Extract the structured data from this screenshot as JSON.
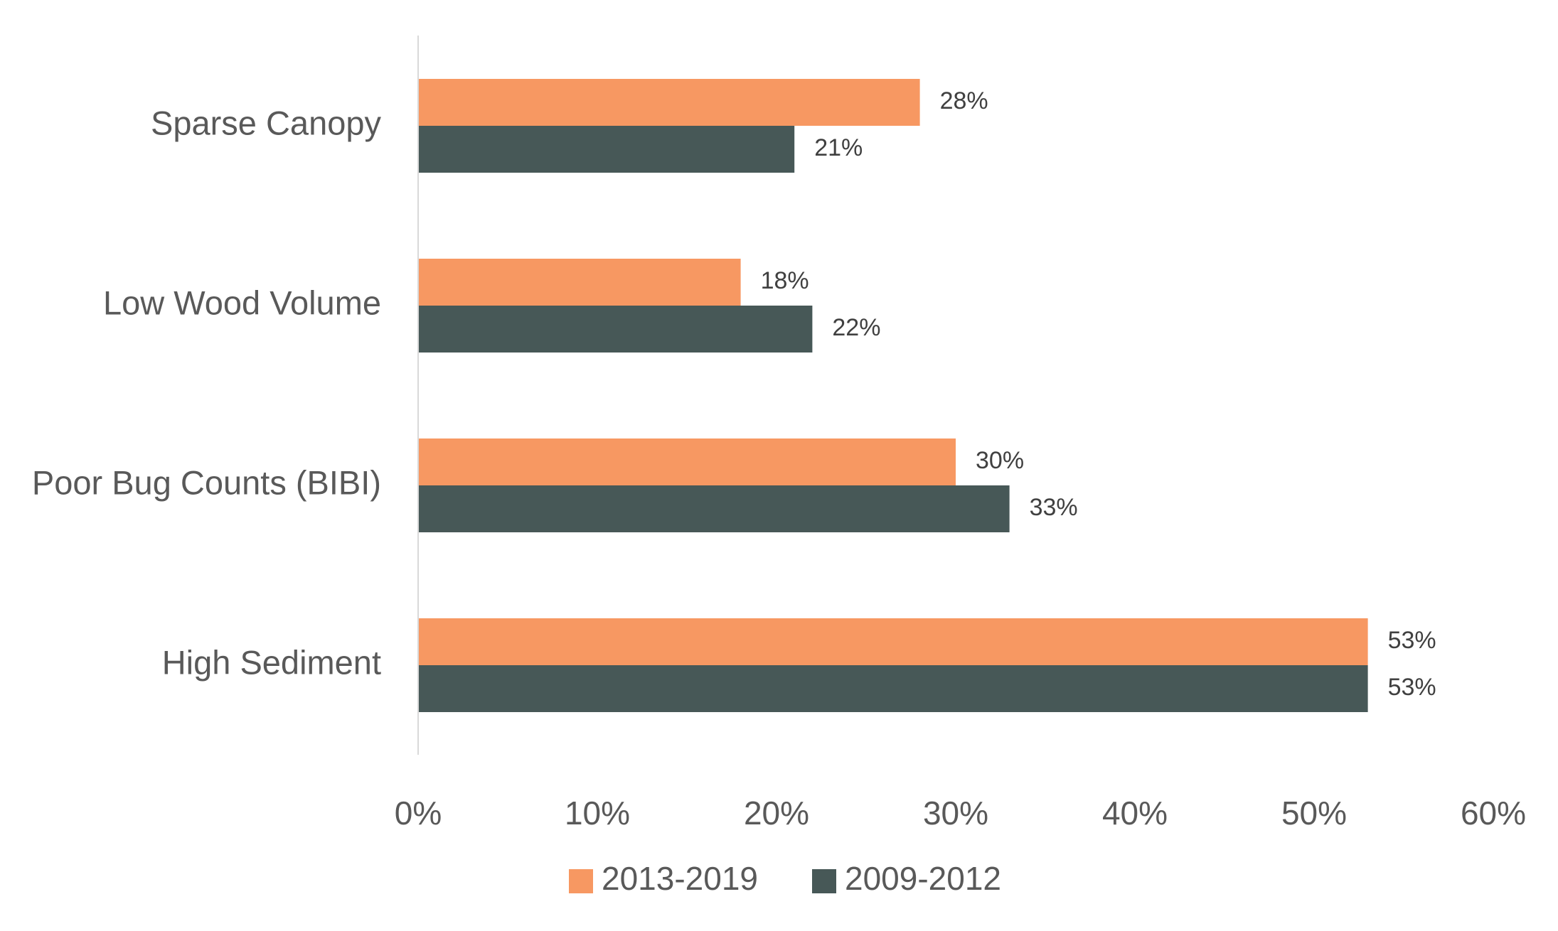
{
  "chart_data": {
    "type": "bar",
    "orientation": "horizontal",
    "categories": [
      "Sparse Canopy",
      "Low Wood Volume",
      "Poor Bug Counts (BIBI)",
      "High Sediment"
    ],
    "series": [
      {
        "name": "2013-2019",
        "values": [
          28,
          18,
          30,
          53
        ],
        "labels": [
          "28%",
          "18%",
          "30%",
          "53%"
        ],
        "color": "#F79862"
      },
      {
        "name": "2009-2012",
        "values": [
          21,
          22,
          33,
          53
        ],
        "labels": [
          "21%",
          "22%",
          "33%",
          "53%"
        ],
        "color": "#475857"
      }
    ],
    "x_ticks": [
      0,
      10,
      20,
      30,
      40,
      50,
      60
    ],
    "x_tick_labels": [
      "0%",
      "10%",
      "20%",
      "30%",
      "40%",
      "50%",
      "60%"
    ],
    "xlim": [
      0,
      60
    ],
    "grid": false,
    "legend_position": "bottom",
    "axis_color": "#D9D9D9"
  }
}
